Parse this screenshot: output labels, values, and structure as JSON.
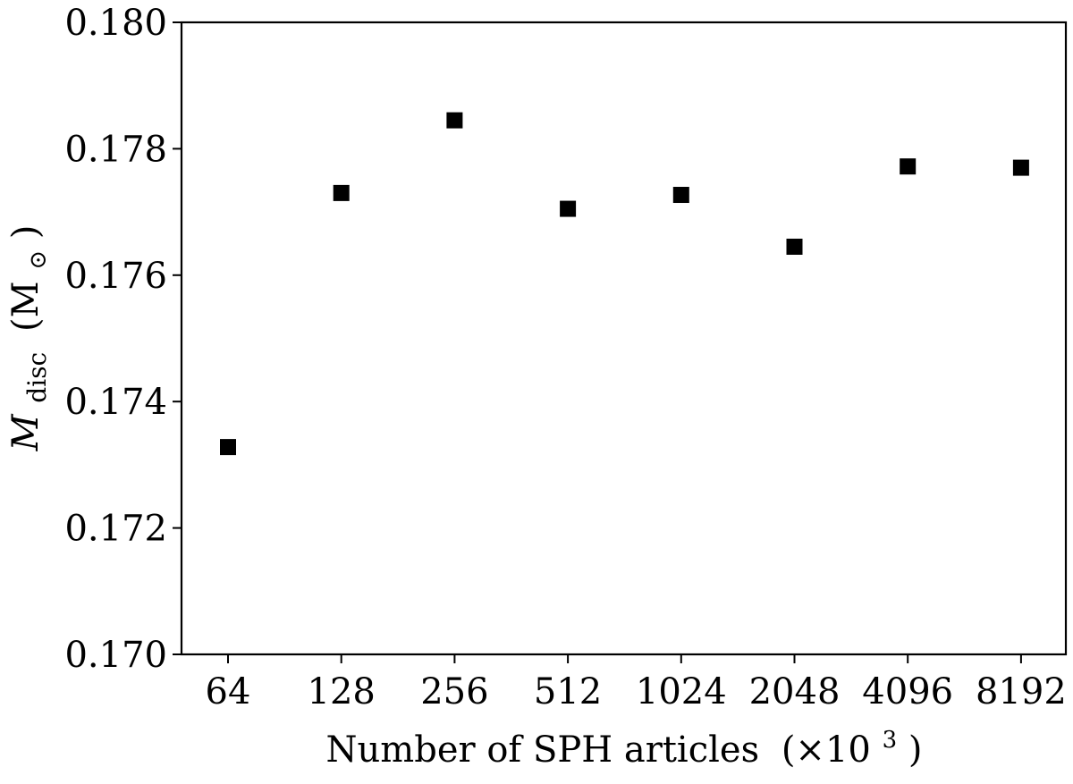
{
  "chart_data": {
    "type": "scatter",
    "xlabel": "Number of SPH articles",
    "xlabel_unit": "(×10",
    "xlabel_unit_exponent": "3",
    "xlabel_unit_close": ")",
    "ylabel_symbol": "M",
    "ylabel_subscript": "disc",
    "ylabel_unit": "(M",
    "ylabel_unit_subscript": "⊙",
    "ylabel_unit_close": ")",
    "categories": [
      "64",
      "128",
      "256",
      "512",
      "1024",
      "2048",
      "4096",
      "8192"
    ],
    "ylim": [
      0.17,
      0.18
    ],
    "yticks": [
      "0.170",
      "0.172",
      "0.174",
      "0.176",
      "0.178",
      "0.180"
    ],
    "grid": false,
    "marker": "square",
    "marker_color": "#000000",
    "series": [
      {
        "values": [
          0.17328,
          0.1773,
          0.17845,
          0.17705,
          0.17727,
          0.17645,
          0.17772,
          0.1777
        ]
      }
    ]
  }
}
